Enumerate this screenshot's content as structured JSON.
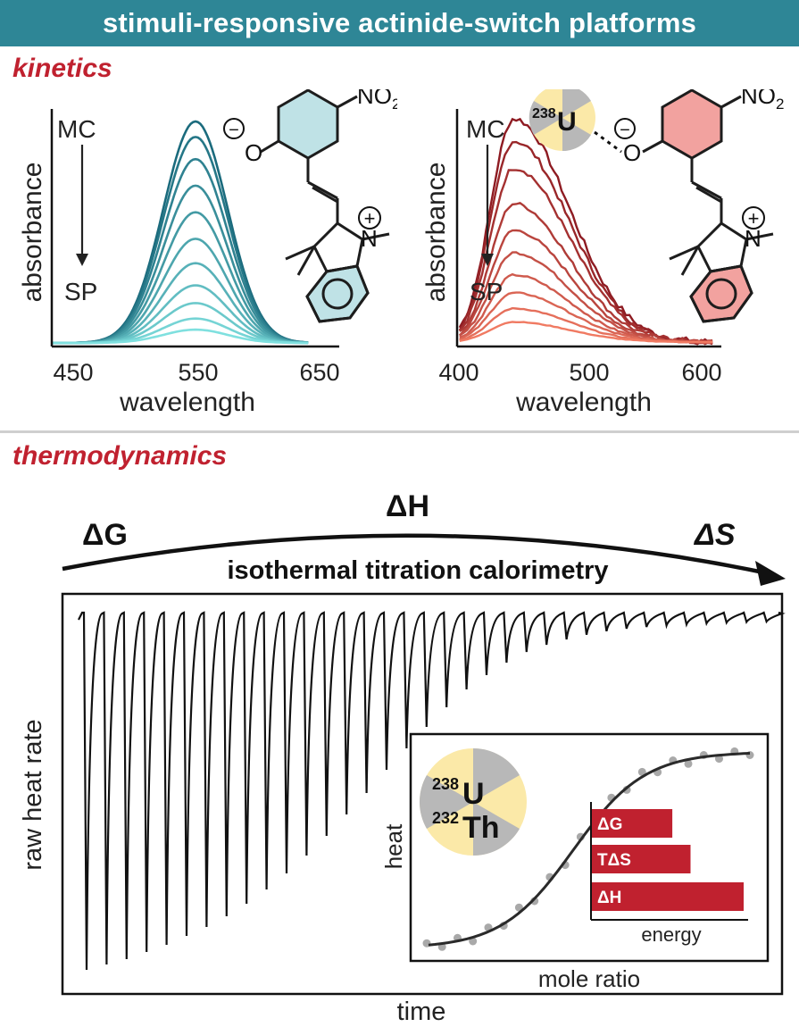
{
  "banner": {
    "title": "stimuli-responsive actinide-switch platforms"
  },
  "kinetics": {
    "label": "kinetics",
    "left_chart": {
      "ylabel": "absorbance",
      "xlabel": "wavelength",
      "ticks": [
        "450",
        "550",
        "650"
      ],
      "state_top": "MC",
      "state_bottom": "SP",
      "color": "#1b6b7d"
    },
    "right_chart": {
      "ylabel": "absorbance",
      "xlabel": "wavelength",
      "ticks": [
        "400",
        "500",
        "600"
      ],
      "state_top": "MC",
      "state_bottom": "SP",
      "color": "#8e1b22"
    },
    "molecule": {
      "no2_main": "NO",
      "no2_sub": "2",
      "o_label": "O",
      "n_label": "N",
      "minus": "−",
      "plus": "+"
    },
    "uranium": {
      "mass": "238",
      "symbol": "U"
    }
  },
  "thermo": {
    "label": "thermodynamics",
    "dg": "ΔG",
    "dh": "ΔH",
    "ds": "ΔS",
    "technique": "isothermal titration calorimetry",
    "ylabel": "raw heat rate",
    "xlabel": "time",
    "inset": {
      "ylabel": "heat",
      "xlabel": "mole ratio",
      "u_mass": "238",
      "u_symbol": "U",
      "th_mass": "232",
      "th_symbol": "Th",
      "bars_label": "energy",
      "bars": [
        {
          "label": "ΔG",
          "value": 0.53
        },
        {
          "label": "TΔS",
          "value": 0.65
        },
        {
          "label": "ΔH",
          "value": 1.0
        }
      ]
    }
  },
  "chart_data": [
    {
      "type": "line",
      "title": "",
      "xlabel": "wavelength",
      "ylabel": "absorbance",
      "xlim": [
        425,
        665
      ],
      "x_ticks": [
        450,
        550,
        650
      ],
      "peak_wavelength": 545,
      "relative_peak_heights": [
        1.0,
        0.93,
        0.83,
        0.71,
        0.59,
        0.47,
        0.36,
        0.26,
        0.18,
        0.11,
        0.06
      ]
    },
    {
      "type": "line",
      "title": "",
      "xlabel": "wavelength",
      "ylabel": "absorbance",
      "xlim": [
        400,
        610
      ],
      "x_ticks": [
        400,
        500,
        600
      ],
      "peak_wavelength": 445,
      "relative_peak_heights": [
        1.0,
        0.9,
        0.78,
        0.62,
        0.5,
        0.4,
        0.3,
        0.22,
        0.15,
        0.09
      ]
    },
    {
      "type": "line",
      "title": "",
      "xlabel": "time",
      "ylabel": "raw heat rate",
      "injections": 35,
      "relative_peak_depths": [
        1.0,
        0.985,
        0.97,
        0.95,
        0.93,
        0.905,
        0.88,
        0.85,
        0.815,
        0.775,
        0.73,
        0.68,
        0.625,
        0.565,
        0.505,
        0.44,
        0.38,
        0.32,
        0.265,
        0.215,
        0.175,
        0.14,
        0.11,
        0.09,
        0.075,
        0.062,
        0.052,
        0.045,
        0.04,
        0.036,
        0.033,
        0.03,
        0.028,
        0.026,
        0.025
      ]
    },
    {
      "type": "scatter",
      "title": "",
      "xlabel": "mole ratio",
      "ylabel": "heat",
      "fit": "sigmoid"
    },
    {
      "type": "bar",
      "xlabel": "energy",
      "categories": [
        "ΔG",
        "TΔS",
        "ΔH"
      ],
      "values": [
        0.53,
        0.65,
        1.0
      ]
    }
  ]
}
